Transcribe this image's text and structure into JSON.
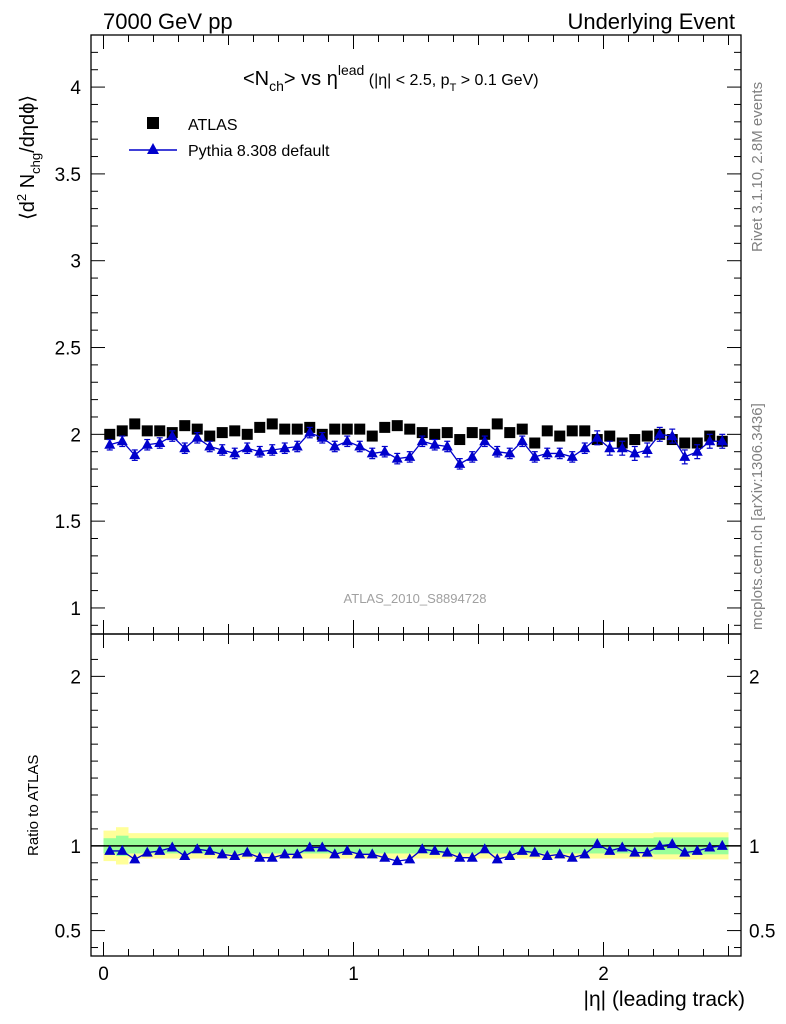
{
  "header": {
    "left": "7000 GeV pp",
    "right": "Underlying Event"
  },
  "side": {
    "rivet": "Rivet 3.1.10,  2.8M events",
    "mcplots": "mcplots.cern.ch [arXiv:1306.3436]"
  },
  "title": {
    "lhs": "<N",
    "ch": "ch",
    "mid": "> vs η",
    "lead": "lead",
    "cond_a": " (|η| < 2.5, p",
    "cond_T": "T",
    "cond_b": " > 0.1 GeV)"
  },
  "ylabel": {
    "a": "⟨d",
    "sup2": "2",
    "b": " N",
    "chg": "chg",
    "c": "/dηdϕ⟩"
  },
  "ratio_ylabel": "Ratio to ATLAS",
  "xlabel": "|η| (leading track)",
  "watermark": "ATLAS_2010_S8894728",
  "legend": {
    "data": "ATLAS",
    "mc": "Pythia 8.308 default"
  },
  "colors": {
    "data": "#000000",
    "mc": "#0000cc",
    "band_inner": "#99ff99",
    "band_outer": "#ffff99"
  },
  "chart_data": [
    {
      "type": "scatter",
      "panel": "main",
      "xlabel": "|η| (leading track)",
      "ylabel": "⟨d² N_chg/dηdϕ⟩",
      "xlim": [
        -0.05,
        2.55
      ],
      "ylim": [
        0.85,
        4.3
      ],
      "yticks": [
        1,
        1.5,
        2,
        2.5,
        3,
        3.5,
        4
      ],
      "ytick_labels": [
        "1",
        "1.5",
        "2",
        "2.5",
        "3",
        "3.5",
        "4"
      ],
      "legend_position": "top-left",
      "x": [
        0.025,
        0.075,
        0.125,
        0.175,
        0.225,
        0.275,
        0.325,
        0.375,
        0.425,
        0.475,
        0.525,
        0.575,
        0.625,
        0.675,
        0.725,
        0.775,
        0.825,
        0.875,
        0.925,
        0.975,
        1.025,
        1.075,
        1.125,
        1.175,
        1.225,
        1.275,
        1.325,
        1.375,
        1.425,
        1.475,
        1.525,
        1.575,
        1.625,
        1.675,
        1.725,
        1.775,
        1.825,
        1.875,
        1.925,
        1.975,
        2.025,
        2.075,
        2.125,
        2.175,
        2.225,
        2.275,
        2.325,
        2.375,
        2.425,
        2.475
      ],
      "series": [
        {
          "name": "ATLAS",
          "values": [
            2.0,
            2.02,
            2.06,
            2.02,
            2.02,
            2.01,
            2.05,
            2.03,
            1.99,
            2.01,
            2.02,
            2.0,
            2.04,
            2.06,
            2.03,
            2.03,
            2.04,
            2.0,
            2.03,
            2.03,
            2.03,
            1.99,
            2.04,
            2.05,
            2.03,
            2.01,
            2.0,
            2.01,
            1.97,
            2.01,
            2.0,
            2.06,
            2.01,
            2.03,
            1.95,
            2.02,
            1.99,
            2.02,
            2.02,
            1.97,
            1.99,
            1.95,
            1.97,
            1.99,
            2.0,
            1.97,
            1.95,
            1.95,
            1.99,
            1.96
          ]
        },
        {
          "name": "Pythia 8.308 default",
          "values": [
            1.94,
            1.96,
            1.88,
            1.94,
            1.95,
            1.99,
            1.92,
            1.98,
            1.93,
            1.91,
            1.89,
            1.92,
            1.9,
            1.91,
            1.92,
            1.93,
            2.01,
            1.98,
            1.93,
            1.96,
            1.93,
            1.89,
            1.9,
            1.86,
            1.87,
            1.96,
            1.94,
            1.93,
            1.83,
            1.87,
            1.96,
            1.9,
            1.89,
            1.96,
            1.87,
            1.89,
            1.89,
            1.87,
            1.92,
            1.98,
            1.92,
            1.92,
            1.89,
            1.91,
            2.0,
            1.99,
            1.87,
            1.9,
            1.96,
            1.96
          ],
          "errors": [
            0.03,
            0.03,
            0.03,
            0.03,
            0.03,
            0.03,
            0.03,
            0.03,
            0.03,
            0.03,
            0.03,
            0.03,
            0.03,
            0.03,
            0.03,
            0.03,
            0.03,
            0.03,
            0.03,
            0.03,
            0.03,
            0.03,
            0.03,
            0.03,
            0.03,
            0.03,
            0.03,
            0.03,
            0.03,
            0.03,
            0.03,
            0.03,
            0.03,
            0.03,
            0.03,
            0.03,
            0.03,
            0.03,
            0.03,
            0.04,
            0.04,
            0.04,
            0.04,
            0.04,
            0.04,
            0.04,
            0.04,
            0.04,
            0.04,
            0.04
          ]
        }
      ]
    },
    {
      "type": "scatter",
      "panel": "ratio",
      "xlabel": "|η| (leading track)",
      "ylabel": "Ratio to ATLAS",
      "xlim": [
        -0.05,
        2.55
      ],
      "ylim": [
        0.35,
        2.25
      ],
      "yticks": [
        0.5,
        1,
        2
      ],
      "ytick_labels": [
        "0.5",
        "1",
        "2"
      ],
      "xticks": [
        0,
        1,
        2
      ],
      "xtick_labels": [
        "0",
        "1",
        "2"
      ],
      "x": [
        0.025,
        0.075,
        0.125,
        0.175,
        0.225,
        0.275,
        0.325,
        0.375,
        0.425,
        0.475,
        0.525,
        0.575,
        0.625,
        0.675,
        0.725,
        0.775,
        0.825,
        0.875,
        0.925,
        0.975,
        1.025,
        1.075,
        1.125,
        1.175,
        1.225,
        1.275,
        1.325,
        1.375,
        1.425,
        1.475,
        1.525,
        1.575,
        1.625,
        1.675,
        1.725,
        1.775,
        1.825,
        1.875,
        1.925,
        1.975,
        2.025,
        2.075,
        2.125,
        2.175,
        2.225,
        2.275,
        2.325,
        2.375,
        2.425,
        2.475
      ],
      "series": [
        {
          "name": "Pythia 8.308 default",
          "values": [
            0.97,
            0.97,
            0.92,
            0.96,
            0.97,
            0.99,
            0.94,
            0.98,
            0.97,
            0.95,
            0.94,
            0.96,
            0.93,
            0.93,
            0.95,
            0.95,
            0.99,
            0.99,
            0.95,
            0.97,
            0.95,
            0.95,
            0.93,
            0.91,
            0.92,
            0.98,
            0.97,
            0.96,
            0.93,
            0.93,
            0.98,
            0.92,
            0.94,
            0.97,
            0.96,
            0.94,
            0.95,
            0.93,
            0.95,
            1.01,
            0.97,
            0.99,
            0.96,
            0.96,
            1.0,
            1.01,
            0.96,
            0.97,
            0.99,
            1.0
          ],
          "errors": [
            0.02,
            0.02,
            0.02,
            0.02,
            0.02,
            0.02,
            0.02,
            0.02,
            0.02,
            0.02,
            0.02,
            0.02,
            0.02,
            0.02,
            0.02,
            0.02,
            0.02,
            0.02,
            0.02,
            0.02,
            0.02,
            0.02,
            0.02,
            0.02,
            0.02,
            0.02,
            0.02,
            0.02,
            0.02,
            0.02,
            0.02,
            0.02,
            0.02,
            0.02,
            0.02,
            0.02,
            0.02,
            0.02,
            0.02,
            0.02,
            0.02,
            0.02,
            0.02,
            0.02,
            0.02,
            0.02,
            0.02,
            0.02,
            0.02,
            0.02
          ]
        }
      ],
      "band_inner": [
        0.045,
        0.06,
        0.045,
        0.045,
        0.045,
        0.045,
        0.045,
        0.045,
        0.045,
        0.045,
        0.045,
        0.045,
        0.045,
        0.045,
        0.045,
        0.045,
        0.045,
        0.045,
        0.045,
        0.045,
        0.045,
        0.045,
        0.045,
        0.045,
        0.045,
        0.045,
        0.045,
        0.045,
        0.045,
        0.045,
        0.045,
        0.045,
        0.045,
        0.045,
        0.045,
        0.045,
        0.045,
        0.045,
        0.045,
        0.045,
        0.045,
        0.045,
        0.045,
        0.045,
        0.05,
        0.05,
        0.05,
        0.05,
        0.05,
        0.05
      ],
      "band_outer": [
        0.09,
        0.11,
        0.075,
        0.075,
        0.075,
        0.075,
        0.075,
        0.075,
        0.075,
        0.075,
        0.075,
        0.075,
        0.075,
        0.075,
        0.075,
        0.075,
        0.075,
        0.075,
        0.075,
        0.075,
        0.075,
        0.075,
        0.075,
        0.075,
        0.075,
        0.075,
        0.075,
        0.075,
        0.075,
        0.075,
        0.075,
        0.075,
        0.075,
        0.075,
        0.075,
        0.075,
        0.075,
        0.075,
        0.075,
        0.075,
        0.075,
        0.075,
        0.075,
        0.075,
        0.08,
        0.08,
        0.08,
        0.08,
        0.08,
        0.08
      ]
    }
  ]
}
